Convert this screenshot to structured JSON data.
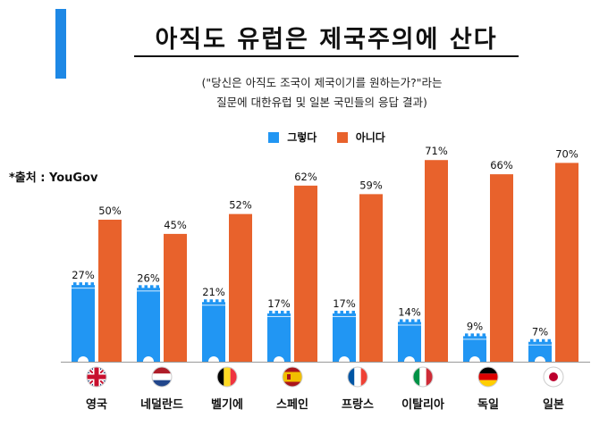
{
  "title": "아직도 유럽은 제국주의에 산다",
  "subtitle_line1": "(\"당신은 아직도 조국이 제국이기를 원하는가?\"라는",
  "subtitle_line2": "질문에 대한유럽 및 일본 국민들의 응답 결과)",
  "source": "*출처 :  YouGov",
  "colors": {
    "accent": "#1E88E5",
    "yes": "#2196F3",
    "no": "#E8622C"
  },
  "chart_data": {
    "type": "bar",
    "title": "아직도 유럽은 제국주의에 산다",
    "categories": [
      "영국",
      "네덜란드",
      "벨기에",
      "스페인",
      "프랑스",
      "이탈리아",
      "독일",
      "일본"
    ],
    "series": [
      {
        "name": "그렇다",
        "values": [
          27,
          26,
          21,
          17,
          17,
          14,
          9,
          7
        ]
      },
      {
        "name": "아니다",
        "values": [
          50,
          45,
          52,
          62,
          59,
          71,
          66,
          70
        ]
      }
    ],
    "unit": "%",
    "ylim": [
      0,
      71
    ],
    "legend_position": "top",
    "grid": false
  },
  "flags": [
    "uk-flag-icon",
    "netherlands-flag-icon",
    "belgium-flag-icon",
    "spain-flag-icon",
    "france-flag-icon",
    "italy-flag-icon",
    "germany-flag-icon",
    "japan-flag-icon"
  ]
}
